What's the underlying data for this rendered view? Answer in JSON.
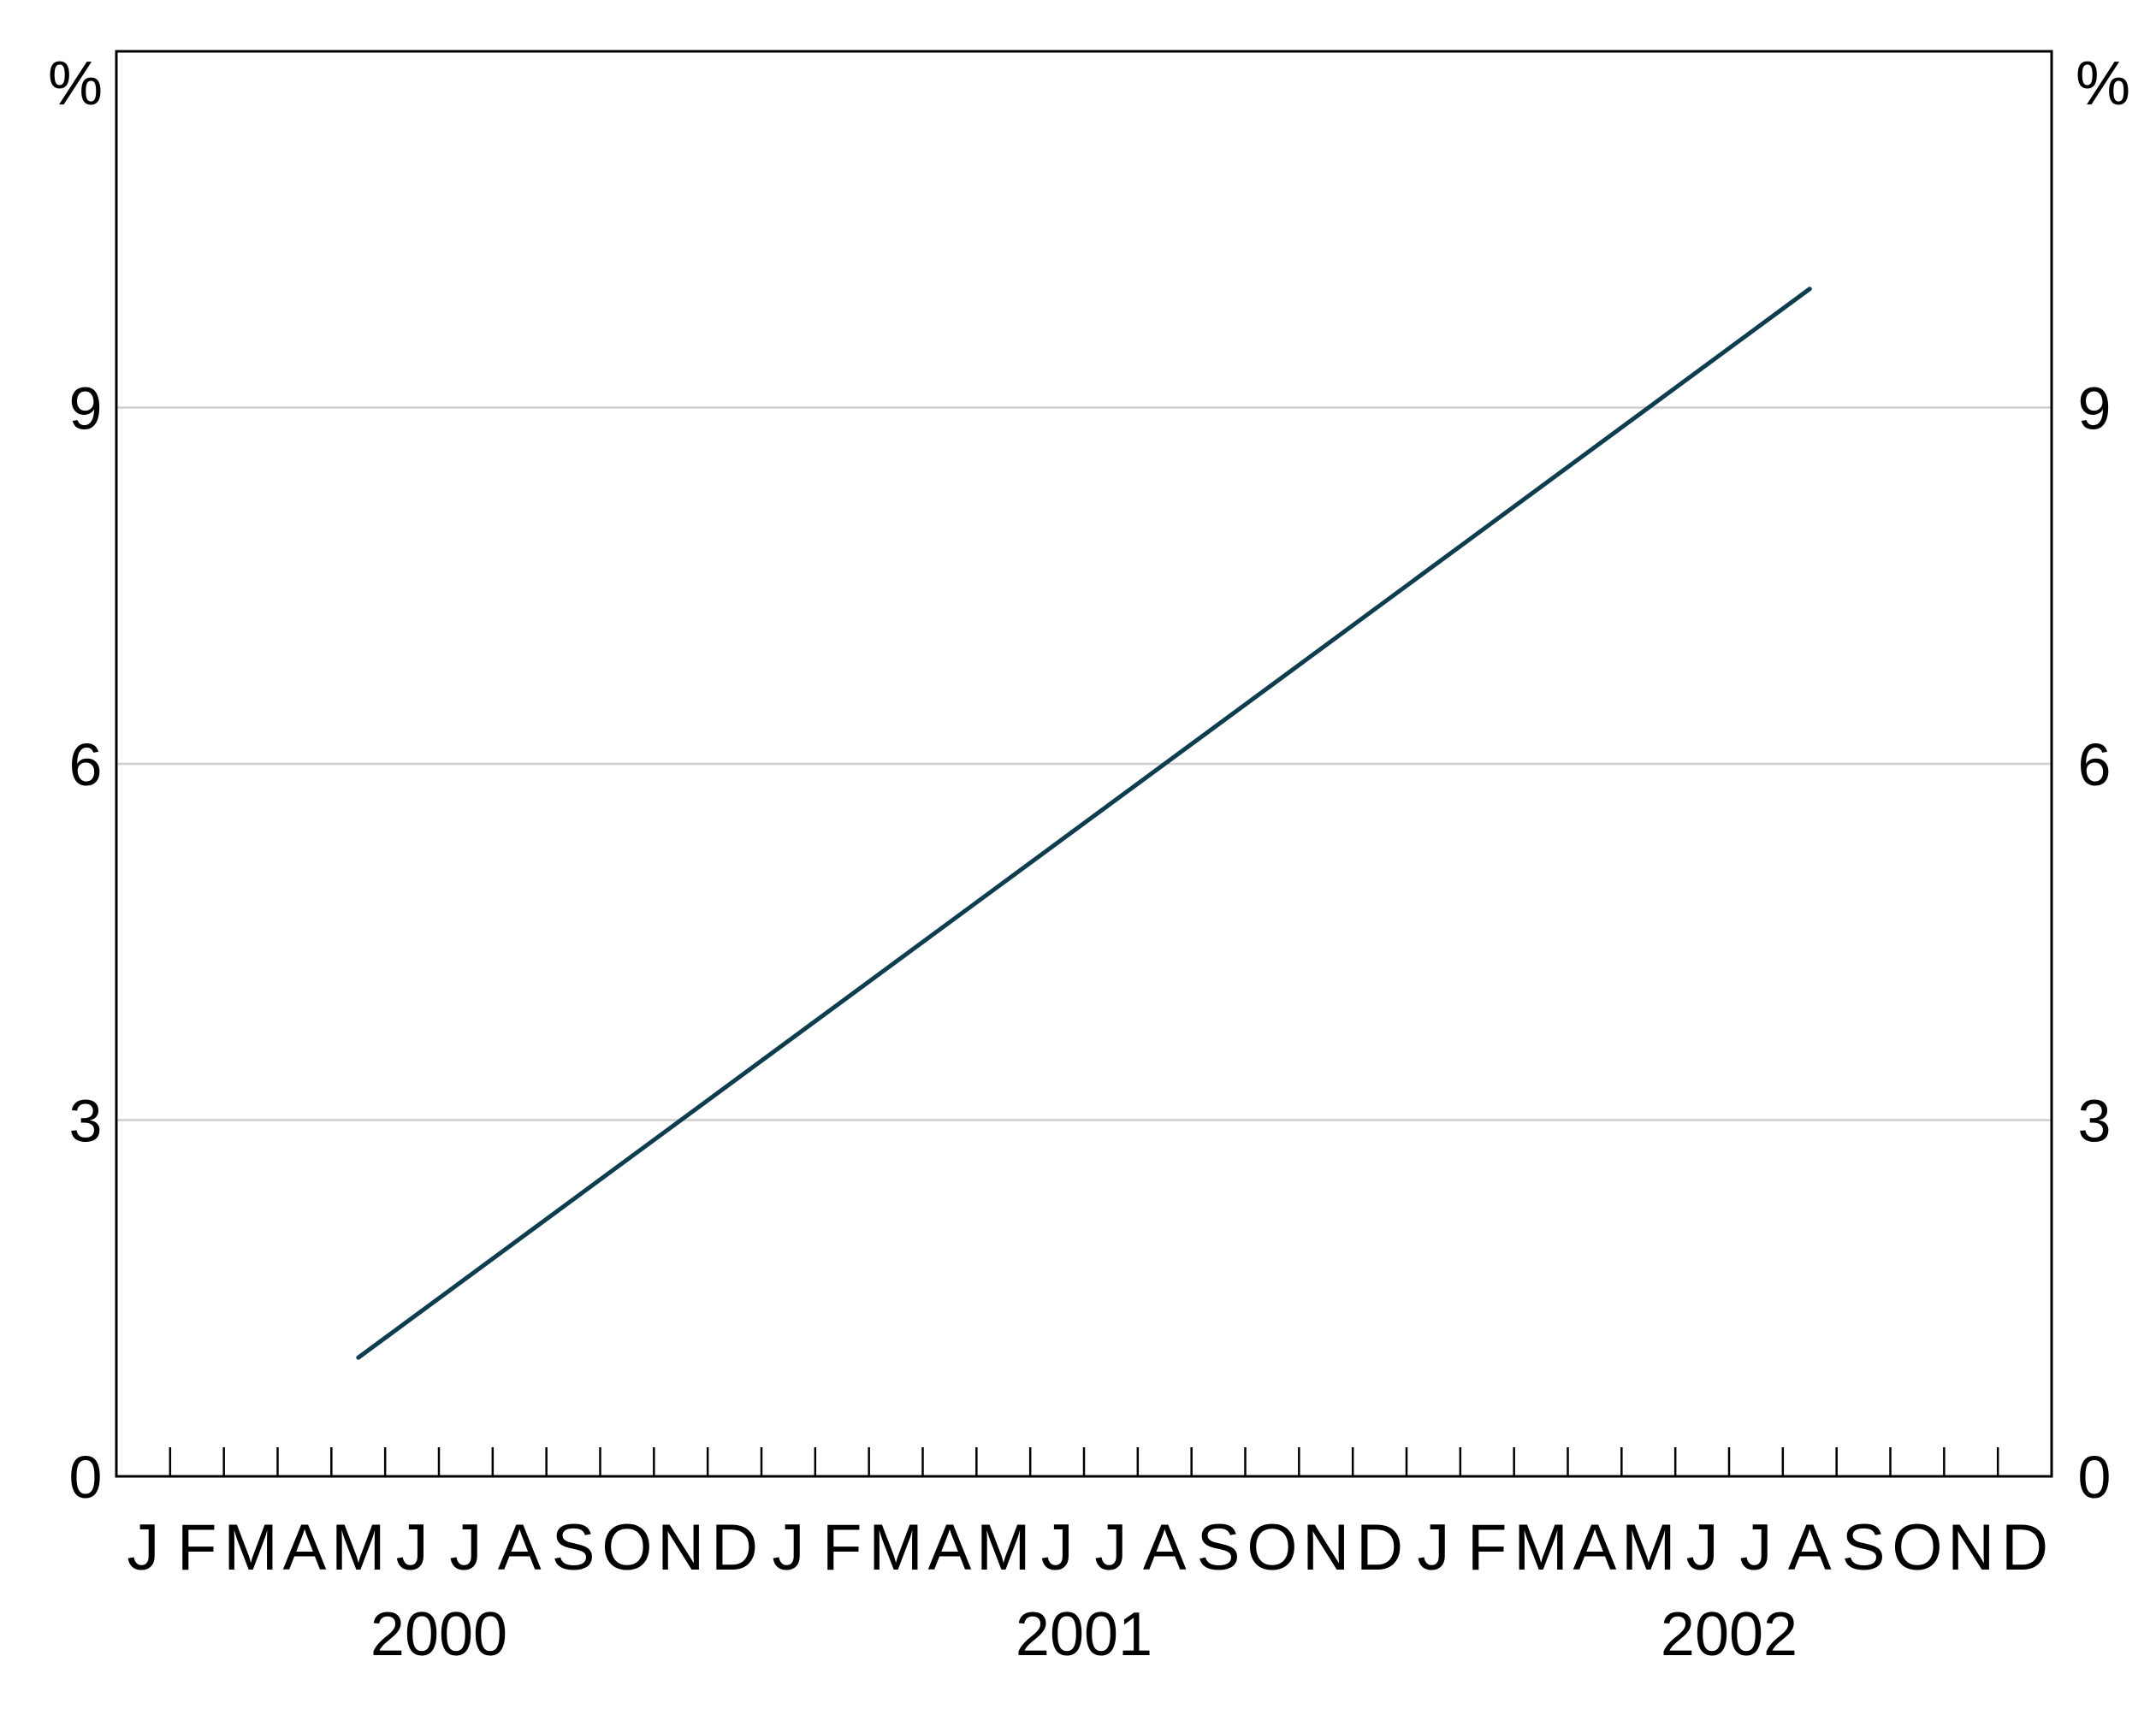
{
  "chart_data": {
    "type": "line",
    "title": "",
    "xlabel": "",
    "ylabel": "%",
    "ylabel_right": "%",
    "ylim": [
      0,
      12
    ],
    "yticks": [
      "0",
      "3",
      "6",
      "9"
    ],
    "grid": true,
    "month_labels": [
      "J",
      "F",
      "M",
      "A",
      "M",
      "J",
      "J",
      "A",
      "S",
      "O",
      "N",
      "D"
    ],
    "years": [
      "2000",
      "2001",
      "2002"
    ],
    "x_start": "2000-01",
    "series": [
      {
        "color": "#0e3d4f",
        "x": [
          "2000-05",
          "2002-08"
        ],
        "values": [
          1.0,
          10.0
        ]
      }
    ]
  }
}
